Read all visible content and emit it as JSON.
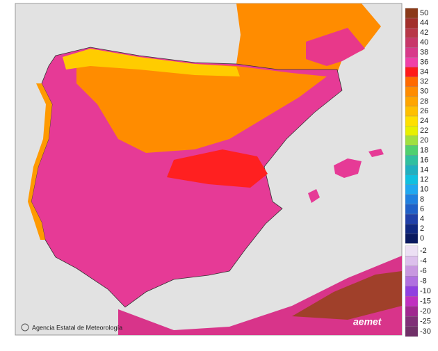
{
  "legend": {
    "upper": [
      {
        "label": "50",
        "color": "#8b3a1a"
      },
      {
        "label": "44",
        "color": "#a3302c"
      },
      {
        "label": "42",
        "color": "#b83848"
      },
      {
        "label": "40",
        "color": "#c8386a"
      },
      {
        "label": "38",
        "color": "#d83a8a"
      },
      {
        "label": "36",
        "color": "#f040a8"
      },
      {
        "label": "34",
        "color": "#ff1a1a"
      },
      {
        "label": "32",
        "color": "#ff6a00"
      },
      {
        "label": "30",
        "color": "#ff8c00"
      },
      {
        "label": "28",
        "color": "#ffa500"
      },
      {
        "label": "26",
        "color": "#ffc000"
      },
      {
        "label": "24",
        "color": "#ffe000"
      },
      {
        "label": "22",
        "color": "#e8f000"
      },
      {
        "label": "20",
        "color": "#a0e040"
      },
      {
        "label": "18",
        "color": "#50d070"
      },
      {
        "label": "16",
        "color": "#30c0a0"
      },
      {
        "label": "14",
        "color": "#20b0c0"
      },
      {
        "label": "12",
        "color": "#10c0e0"
      },
      {
        "label": "10",
        "color": "#20a8f0"
      },
      {
        "label": "8",
        "color": "#2080e0"
      },
      {
        "label": "6",
        "color": "#2060c8"
      },
      {
        "label": "4",
        "color": "#2040a8"
      },
      {
        "label": "2",
        "color": "#102880"
      },
      {
        "label": "0",
        "color": "#0a1a60"
      }
    ],
    "lower": [
      {
        "label": "-2",
        "color": "#ece0f4"
      },
      {
        "label": "-4",
        "color": "#dcc0ec"
      },
      {
        "label": "-6",
        "color": "#c898e0"
      },
      {
        "label": "-8",
        "color": "#b070e0"
      },
      {
        "label": "-10",
        "color": "#9040e0"
      },
      {
        "label": "-15",
        "color": "#c030c0"
      },
      {
        "label": "-20",
        "color": "#a02890"
      },
      {
        "label": "-25",
        "color": "#803078"
      },
      {
        "label": "-30",
        "color": "#703068"
      }
    ]
  },
  "credit": "Agencia Estatal de Meteorología",
  "logo": "aemet"
}
